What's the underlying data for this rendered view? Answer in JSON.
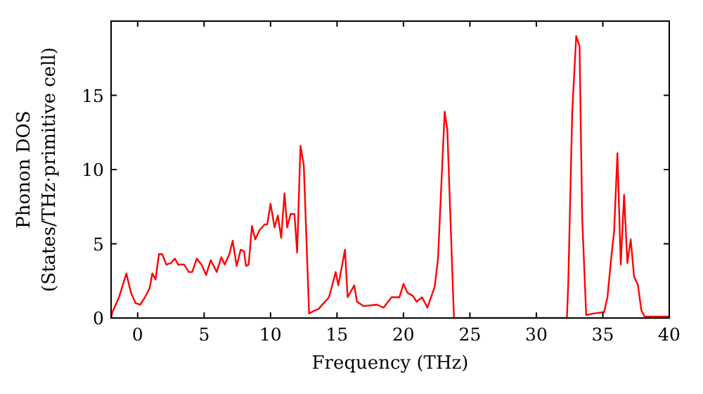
{
  "chart_data": {
    "type": "line",
    "xlabel": "Frequency (THz)",
    "ylabel": "Phonon DOS\n(States/THz·primitive cell)",
    "xlim": [
      -2,
      40
    ],
    "ylim": [
      0,
      20
    ],
    "xticks": [
      0,
      5,
      10,
      15,
      20,
      25,
      30,
      35,
      40
    ],
    "yticks": [
      0,
      5,
      10,
      15
    ],
    "marker": "none",
    "line_style": "solid",
    "series": [
      {
        "color": "#ff0000",
        "x": [
          -2,
          -1.9,
          -1.4,
          -0.85,
          -0.5,
          -0.15,
          0.2,
          0.55,
          0.9,
          1.1,
          1.35,
          1.6,
          1.85,
          2.15,
          2.5,
          2.8,
          3.05,
          3.5,
          3.85,
          4.1,
          4.45,
          4.8,
          5.15,
          5.5,
          5.95,
          6.3,
          6.55,
          6.9,
          7.15,
          7.45,
          7.75,
          8,
          8.15,
          8.35,
          8.6,
          8.85,
          9.15,
          9.55,
          9.75,
          10,
          10.3,
          10.55,
          10.8,
          11.05,
          11.25,
          11.5,
          11.8,
          12,
          12.25,
          12.5,
          12.9,
          13.3,
          13.6,
          14,
          14.4,
          14.9,
          15.1,
          15.6,
          15.8,
          16.3,
          16.5,
          17,
          18,
          18.5,
          19.1,
          19.7,
          20,
          20.3,
          20.7,
          21,
          21.4,
          21.8,
          22.35,
          22.6,
          23.1,
          23.3,
          23.8,
          32.3,
          32.4,
          32.7,
          33,
          33.25,
          33.45,
          33.75,
          34.3,
          35.1,
          35.35,
          35.65,
          35.85,
          36.1,
          36.35,
          36.6,
          36.85,
          37.1,
          37.35,
          37.65,
          37.9,
          38.15,
          40
        ],
        "values": [
          0,
          0.4,
          1.4,
          3,
          1.7,
          1,
          0.9,
          1.4,
          2,
          3,
          2.6,
          4.3,
          4.3,
          3.6,
          3.7,
          4,
          3.6,
          3.6,
          3.1,
          3.1,
          4,
          3.6,
          2.9,
          3.9,
          3.1,
          4.1,
          3.6,
          4.3,
          5.2,
          3.5,
          4.6,
          4.5,
          3.5,
          3.6,
          6.2,
          5.3,
          5.9,
          6.3,
          6.3,
          7.7,
          6.1,
          6.9,
          5.4,
          8.4,
          6.1,
          7,
          7,
          4.4,
          11.6,
          10.3,
          0.3,
          0.5,
          0.6,
          1,
          1.4,
          3.1,
          2.2,
          4.6,
          1.4,
          2.2,
          1.1,
          0.8,
          0.9,
          0.7,
          1.4,
          1.4,
          2.3,
          1.7,
          1.5,
          1.1,
          1.4,
          0.7,
          2.1,
          4,
          13.9,
          12.7,
          0,
          0,
          2.3,
          13.9,
          19,
          18.3,
          6.7,
          0.2,
          0.3,
          0.4,
          1.4,
          4.2,
          5.8,
          11.1,
          3.6,
          8.3,
          3.7,
          5.3,
          2.8,
          2.2,
          0.5,
          0.1,
          0.1
        ]
      }
    ]
  }
}
